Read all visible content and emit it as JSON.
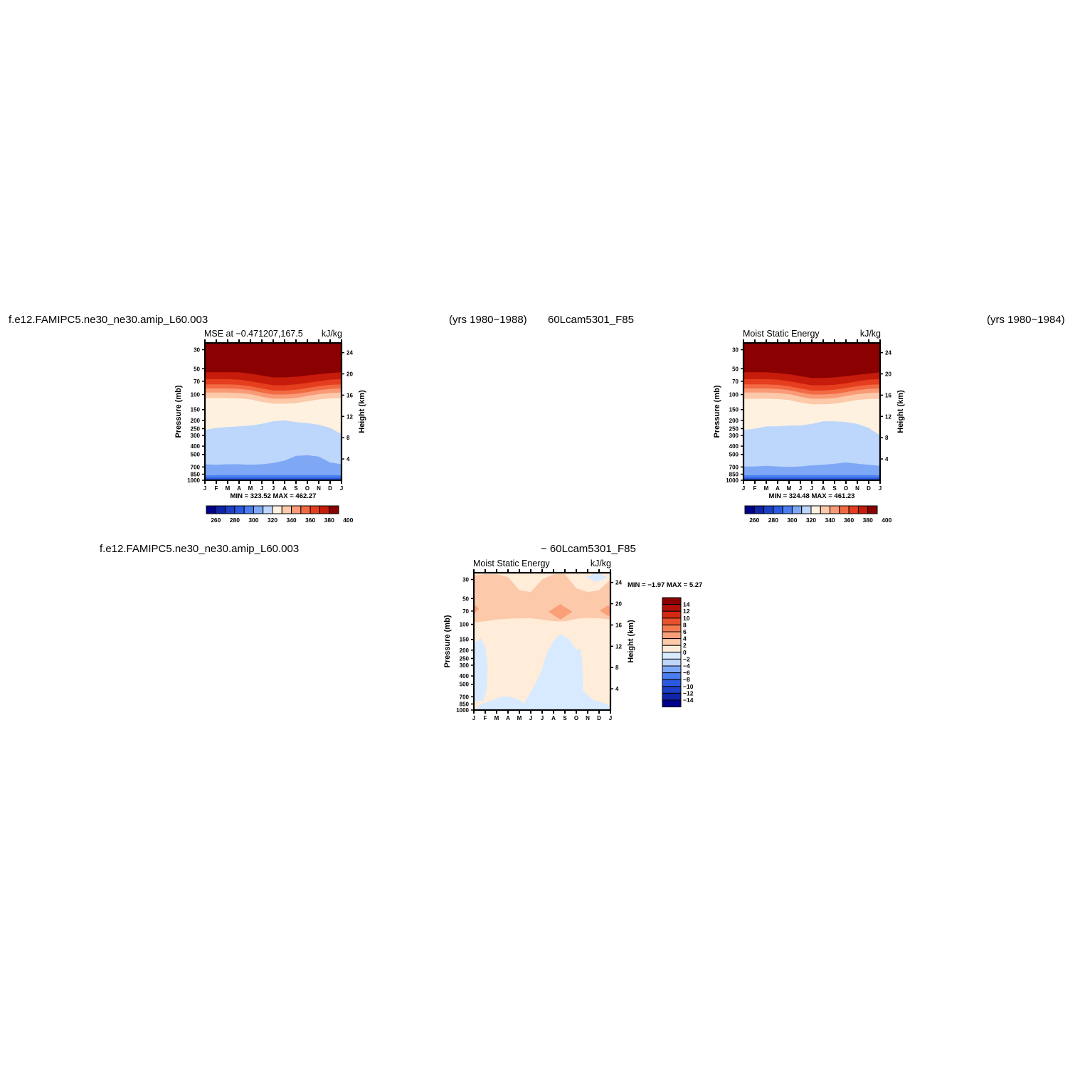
{
  "header": {
    "case_name": "f.e12.FAMIPC5.ne30_ne30.amip_L60.003",
    "case_years": "(yrs 1980−1988)",
    "control_name": "60Lcam5301_F85",
    "control_years": "(yrs 1980−1984)",
    "diff_case_name": "f.e12.FAMIPC5.ne30_ne30.amip_L60.003",
    "diff_control_name": "−  60Lcam5301_F85"
  },
  "colors": {
    "full_palette": [
      "#00008b",
      "#0e25a9",
      "#1c3fc4",
      "#2a59e0",
      "#4a7df0",
      "#7ea8f5",
      "#bdd6fb",
      "#fff1df",
      "#fcc9aa",
      "#f99a77",
      "#f26a43",
      "#e53e1e",
      "#c71b0b",
      "#8b0000"
    ],
    "diff_palette": [
      "#00008b",
      "#0e25a9",
      "#1c3fc4",
      "#2a59e0",
      "#4a7df0",
      "#7ea8f5",
      "#bdd6fb",
      "#d8eaff",
      "#ffecd9",
      "#fcc9aa",
      "#f9a079",
      "#f47a4f",
      "#e9512c",
      "#d32a12",
      "#b01208",
      "#8b0000"
    ]
  },
  "chart_data": [
    {
      "id": "case",
      "type": "heatmap",
      "title_left": "MSE at −0.471207,167.5",
      "title_right": "kJ/kg",
      "xlabel": "",
      "ylabel": "Pressure (mb)",
      "ylabel_right": "Height (km)",
      "x_ticks": [
        "J",
        "F",
        "M",
        "A",
        "M",
        "J",
        "J",
        "A",
        "S",
        "O",
        "N",
        "D",
        "J"
      ],
      "y_ticks": [
        30,
        50,
        70,
        100,
        150,
        200,
        250,
        300,
        400,
        500,
        700,
        850,
        1000
      ],
      "y_ticks_right": [
        24,
        20,
        16,
        12,
        8,
        4
      ],
      "ylim": [
        1000,
        25
      ],
      "y_scale": "log",
      "min_max_text": "MIN =  323.52  MAX =  462.27",
      "colorbar": {
        "orientation": "horizontal",
        "labels": [
          "260",
          "280",
          "300",
          "320",
          "340",
          "360",
          "380",
          "400"
        ]
      },
      "level_values": [
        250,
        260,
        270,
        280,
        290,
        300,
        310,
        320,
        330,
        340,
        350,
        360,
        370,
        380,
        390,
        400,
        410
      ],
      "band_tops": {
        "months": [
          "J",
          "F",
          "M",
          "A",
          "M",
          "J",
          "J",
          "A",
          "S",
          "O",
          "N",
          "D",
          "J"
        ],
        "levels": [
          {
            "value": 400,
            "pressure": [
              55,
              55,
              55,
              55,
              57,
              60,
              63,
              63,
              62,
              60,
              58,
              56,
              55
            ]
          },
          {
            "value": 390,
            "pressure": [
              66,
              66,
              66,
              67,
              70,
              74,
              78,
              78,
              76,
              73,
              70,
              67,
              66
            ]
          },
          {
            "value": 380,
            "pressure": [
              76,
              76,
              76,
              77,
              80,
              85,
              90,
              90,
              88,
              84,
              80,
              77,
              76
            ]
          },
          {
            "value": 370,
            "pressure": [
              85,
              85,
              85,
              86,
              89,
              95,
              100,
              100,
              98,
              94,
              89,
              86,
              85
            ]
          },
          {
            "value": 360,
            "pressure": [
              95,
              95,
              95,
              96,
              99,
              106,
              112,
              112,
              110,
              104,
              99,
              96,
              95
            ]
          },
          {
            "value": 350,
            "pressure": [
              110,
              110,
              110,
              111,
              114,
              122,
              128,
              128,
              126,
              120,
              114,
              111,
              110
            ]
          },
          {
            "value": 340,
            "pressure": [
              260,
              245,
              240,
              235,
              230,
              220,
              205,
              200,
              210,
              215,
              225,
              245,
              290
            ]
          },
          {
            "value": 330,
            "pressure": [
              650,
              660,
              650,
              650,
              660,
              650,
              630,
              590,
              520,
              510,
              530,
              620,
              650
            ]
          },
          {
            "value": 320,
            "pressure": [
              880,
              875,
              870,
              870,
              870,
              870,
              870,
              870,
              870,
              870,
              870,
              870,
              875
            ]
          },
          {
            "value": 310,
            "pressure": [
              935,
              935,
              935,
              935,
              935,
              935,
              935,
              935,
              935,
              935,
              935,
              935,
              935
            ]
          }
        ]
      }
    },
    {
      "id": "control",
      "type": "heatmap",
      "title_left": "Moist Static Energy",
      "title_right": "kJ/kg",
      "xlabel": "",
      "ylabel": "Pressure (mb)",
      "ylabel_right": "Height (km)",
      "x_ticks": [
        "J",
        "F",
        "M",
        "A",
        "M",
        "J",
        "J",
        "A",
        "S",
        "O",
        "N",
        "D",
        "J"
      ],
      "y_ticks": [
        30,
        50,
        70,
        100,
        150,
        200,
        250,
        300,
        400,
        500,
        700,
        850,
        1000
      ],
      "y_ticks_right": [
        24,
        20,
        16,
        12,
        8,
        4
      ],
      "ylim": [
        1000,
        25
      ],
      "y_scale": "log",
      "min_max_text": "MIN =  324.48  MAX =  461.23",
      "colorbar": {
        "orientation": "horizontal",
        "labels": [
          "260",
          "280",
          "300",
          "320",
          "340",
          "360",
          "380",
          "400"
        ]
      },
      "level_values": [
        250,
        260,
        270,
        280,
        290,
        300,
        310,
        320,
        330,
        340,
        350,
        360,
        370,
        380,
        390,
        400,
        410
      ],
      "band_tops": {
        "months": [
          "J",
          "F",
          "M",
          "A",
          "M",
          "J",
          "J",
          "A",
          "S",
          "O",
          "N",
          "D",
          "J"
        ],
        "levels": [
          {
            "value": 400,
            "pressure": [
              55,
              55,
              55,
              56,
              58,
              61,
              64,
              64,
              63,
              61,
              59,
              57,
              55
            ]
          },
          {
            "value": 390,
            "pressure": [
              66,
              66,
              66,
              67,
              70,
              74,
              78,
              78,
              77,
              74,
              70,
              67,
              66
            ]
          },
          {
            "value": 380,
            "pressure": [
              76,
              76,
              76,
              77,
              80,
              85,
              90,
              90,
              88,
              84,
              80,
              77,
              76
            ]
          },
          {
            "value": 370,
            "pressure": [
              85,
              85,
              85,
              86,
              89,
              95,
              100,
              100,
              98,
              94,
              89,
              86,
              85
            ]
          },
          {
            "value": 360,
            "pressure": [
              95,
              95,
              95,
              96,
              99,
              106,
              112,
              112,
              110,
              104,
              99,
              96,
              95
            ]
          },
          {
            "value": 350,
            "pressure": [
              112,
              112,
              112,
              113,
              116,
              124,
              130,
              130,
              128,
              122,
              116,
              113,
              112
            ]
          },
          {
            "value": 340,
            "pressure": [
              260,
              250,
              235,
              235,
              230,
              230,
              220,
              205,
              205,
              210,
              220,
              245,
              300
            ]
          },
          {
            "value": 330,
            "pressure": [
              690,
              690,
              680,
              690,
              700,
              690,
              670,
              660,
              640,
              620,
              640,
              660,
              680
            ]
          },
          {
            "value": 320,
            "pressure": [
              880,
              875,
              870,
              870,
              870,
              870,
              870,
              870,
              870,
              870,
              870,
              870,
              875
            ]
          },
          {
            "value": 310,
            "pressure": [
              935,
              935,
              935,
              935,
              935,
              935,
              935,
              935,
              935,
              935,
              935,
              935,
              935
            ]
          }
        ]
      }
    },
    {
      "id": "difference",
      "type": "heatmap",
      "title_left": "Moist Static Energy",
      "title_right": "kJ/kg",
      "xlabel": "",
      "ylabel": "Pressure (mb)",
      "ylabel_right": "Height (km)",
      "x_ticks": [
        "J",
        "F",
        "M",
        "A",
        "M",
        "J",
        "J",
        "A",
        "S",
        "O",
        "N",
        "D",
        "J"
      ],
      "y_ticks": [
        30,
        50,
        70,
        100,
        150,
        200,
        250,
        300,
        400,
        500,
        700,
        850,
        1000
      ],
      "y_ticks_right": [
        24,
        20,
        16,
        12,
        8,
        4
      ],
      "ylim": [
        1000,
        25
      ],
      "y_scale": "log",
      "min_max_text": "MIN =   −1.97  MAX =     5.27",
      "colorbar": {
        "orientation": "vertical",
        "labels": [
          "14",
          "12",
          "10",
          "8",
          "6",
          "4",
          "2",
          "0",
          "−2",
          "−4",
          "−6",
          "−8",
          "−10",
          "−12",
          "−14"
        ]
      },
      "level_values": [
        16,
        14,
        12,
        10,
        8,
        6,
        4,
        2,
        0,
        -2,
        -4,
        -6,
        -8,
        -10,
        -12,
        -14,
        -16
      ],
      "features": [
        {
          "value": 3,
          "kind": "band",
          "months": [
            0,
            1,
            2,
            3,
            4,
            5,
            6,
            7,
            8,
            9,
            10,
            11,
            12
          ],
          "top": [
            27,
            26,
            26,
            28,
            40,
            42,
            30,
            26,
            26,
            38,
            42,
            40,
            30
          ],
          "bottom": [
            95,
            92,
            88,
            86,
            85,
            85,
            88,
            92,
            92,
            86,
            84,
            85,
            88
          ]
        },
        {
          "value": 5,
          "kind": "blob",
          "center_month": 7.6,
          "center_pressure": 70,
          "span_months": 1.6,
          "span_pressure": [
            58,
            88
          ]
        },
        {
          "value": 5,
          "kind": "blob",
          "center_month": 11.8,
          "center_pressure": 68,
          "span_months": 1.0,
          "span_pressure": [
            60,
            80
          ]
        },
        {
          "value": 5,
          "kind": "blob",
          "center_month": 0.0,
          "center_pressure": 65,
          "span_months": 0.4,
          "span_pressure": [
            58,
            75
          ]
        },
        {
          "value": -1,
          "kind": "blob",
          "center_month": 10.8,
          "center_pressure": 27,
          "span_months": 1.4,
          "span_pressure": [
            25,
            32
          ]
        },
        {
          "value": -1,
          "kind": "region",
          "outline_months": [
            4.5,
            5.3,
            5.9,
            6.4,
            7.0,
            7.6,
            8.4,
            9.0,
            9.3,
            9.5,
            9.6,
            10.5,
            11.3,
            11.8,
            12.0,
            12.0,
            4.5
          ],
          "outline_pressure": [
            800,
            520,
            360,
            220,
            155,
            130,
            150,
            200,
            190,
            250,
            600,
            760,
            820,
            860,
            900,
            1000,
            1000
          ]
        },
        {
          "value": -1,
          "kind": "region",
          "outline_months": [
            0.0,
            0.6,
            1.0,
            1.2,
            1.1,
            0.8,
            0.0
          ],
          "outline_pressure": [
            170,
            145,
            180,
            320,
            600,
            780,
            800
          ]
        },
        {
          "value": -1,
          "kind": "region",
          "outline_months": [
            0.3,
            1.2,
            2.5,
            3.2,
            4.0,
            4.5,
            4.5,
            0.3
          ],
          "outline_pressure": [
            900,
            800,
            700,
            700,
            760,
            850,
            1000,
            1000
          ]
        }
      ]
    }
  ]
}
